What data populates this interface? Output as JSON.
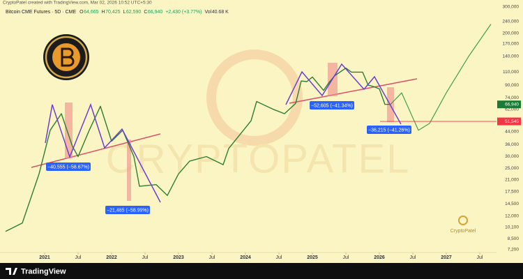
{
  "credit": "CryptoPatel created with TradingView.com, Mar 02, 2026 10:52 UTC+5:30",
  "chart_data": {
    "type": "line",
    "title": "Bitcoin CME Futures · 5D · CME",
    "ohlc": [
      {
        "key": "O",
        "value": "64,665"
      },
      {
        "key": "H",
        "value": "70,425"
      },
      {
        "key": "L",
        "value": "62,590"
      },
      {
        "key": "C",
        "value": "66,940"
      },
      {
        "key": "",
        "value": "+2,430 (+3.77%)"
      },
      {
        "key": "Vol",
        "value": "40.68 K"
      }
    ],
    "log_scale": true,
    "grid": false,
    "x": [
      "2020-06",
      "2020-09",
      "2020-12",
      "2021-02",
      "2021-04",
      "2021-06",
      "2021-07",
      "2021-09",
      "2021-11",
      "2022-01",
      "2022-03",
      "2022-05",
      "2022-06",
      "2022-09",
      "2022-11",
      "2023-01",
      "2023-03",
      "2023-06",
      "2023-09",
      "2023-10",
      "2023-12",
      "2024-02",
      "2024-03",
      "2024-06",
      "2024-08",
      "2024-10",
      "2024-11",
      "2024-12",
      "2025-01",
      "2025-03",
      "2025-04",
      "2025-05",
      "2025-07",
      "2025-08",
      "2025-10",
      "2025-11",
      "2025-12",
      "2026-01",
      "2026-02",
      "2026-03",
      "2026-05",
      "2026-08",
      "2026-10",
      "2027-01",
      "2027-05",
      "2027-09"
    ],
    "series": [
      {
        "color": "#2e7d32",
        "values": [
          9500,
          10800,
          23000,
          45000,
          58000,
          35000,
          30000,
          45000,
          65000,
          38000,
          45000,
          30000,
          19000,
          19500,
          16500,
          23000,
          28000,
          30000,
          26500,
          34000,
          42000,
          52000,
          70000,
          62000,
          58000,
          68000,
          96000,
          95000,
          102000,
          83000,
          94000,
          104000,
          117000,
          110000,
          110000,
          90000,
          88000,
          85000,
          67000,
          66940,
          null,
          null,
          null,
          null,
          null,
          null
        ]
      },
      {
        "color": "#43a047",
        "values": [
          null,
          null,
          null,
          null,
          null,
          null,
          null,
          null,
          null,
          null,
          null,
          null,
          null,
          null,
          null,
          null,
          null,
          null,
          null,
          null,
          null,
          null,
          null,
          null,
          null,
          null,
          null,
          null,
          null,
          null,
          null,
          null,
          null,
          null,
          null,
          null,
          null,
          null,
          null,
          66940,
          80000,
          45000,
          50000,
          80000,
          140000,
          230000
        ]
      }
    ],
    "xlim": [
      "2020-05",
      "2027-10"
    ],
    "xticks": [
      {
        "value": "2021-01",
        "label": "2021"
      },
      {
        "value": "2021-07",
        "label": "Jul"
      },
      {
        "value": "2022-01",
        "label": "2022"
      },
      {
        "value": "2022-07",
        "label": "Jul"
      },
      {
        "value": "2023-01",
        "label": "2023"
      },
      {
        "value": "2023-07",
        "label": "Jul"
      },
      {
        "value": "2024-01",
        "label": "2024"
      },
      {
        "value": "2024-07",
        "label": "Jul"
      },
      {
        "value": "2025-01",
        "label": "2025"
      },
      {
        "value": "2025-07",
        "label": "Jul"
      },
      {
        "value": "2026-01",
        "label": "2026"
      },
      {
        "value": "2026-07",
        "label": "Jul"
      },
      {
        "value": "2027-01",
        "label": "2027"
      },
      {
        "value": "2027-07",
        "label": "Jul"
      }
    ],
    "ylim": [
      6300,
      316000
    ],
    "yticks": [
      {
        "value": 300000,
        "label": "300,000"
      },
      {
        "value": 240000,
        "label": "240,000"
      },
      {
        "value": 200000,
        "label": "200,000"
      },
      {
        "value": 170000,
        "label": "170,000"
      },
      {
        "value": 140000,
        "label": "140,000"
      },
      {
        "value": 110000,
        "label": "110,000"
      },
      {
        "value": 90000,
        "label": "90,000"
      },
      {
        "value": 74000,
        "label": "74,000"
      },
      {
        "value": 62000,
        "label": "62,000"
      },
      {
        "value": 44000,
        "label": "44,000"
      },
      {
        "value": 36000,
        "label": "36,000"
      },
      {
        "value": 30000,
        "label": "30,000"
      },
      {
        "value": 25000,
        "label": "25,000"
      },
      {
        "value": 21000,
        "label": "21,000"
      },
      {
        "value": 17500,
        "label": "17,500"
      },
      {
        "value": 14500,
        "label": "14,500"
      },
      {
        "value": 12000,
        "label": "12,000"
      },
      {
        "value": 10100,
        "label": "10,100"
      },
      {
        "value": 8500,
        "label": "8,500"
      },
      {
        "value": 7200,
        "label": "7,200"
      }
    ],
    "price_labels": [
      {
        "value": 66940,
        "label": "66,940",
        "color": "#1b7a35"
      },
      {
        "value": 51545,
        "label": "51,545",
        "color": "#f23645"
      }
    ],
    "annotations": [
      "−40,555 (−58.67%)",
      "−21,465 (−58.99%)",
      "−52,605 (−41.34%)",
      "−36,215 (−41.26%)"
    ]
  },
  "watermark": "CRYPTOPATEL",
  "logo_text": "CryptoPatel",
  "footer": "TradingView"
}
